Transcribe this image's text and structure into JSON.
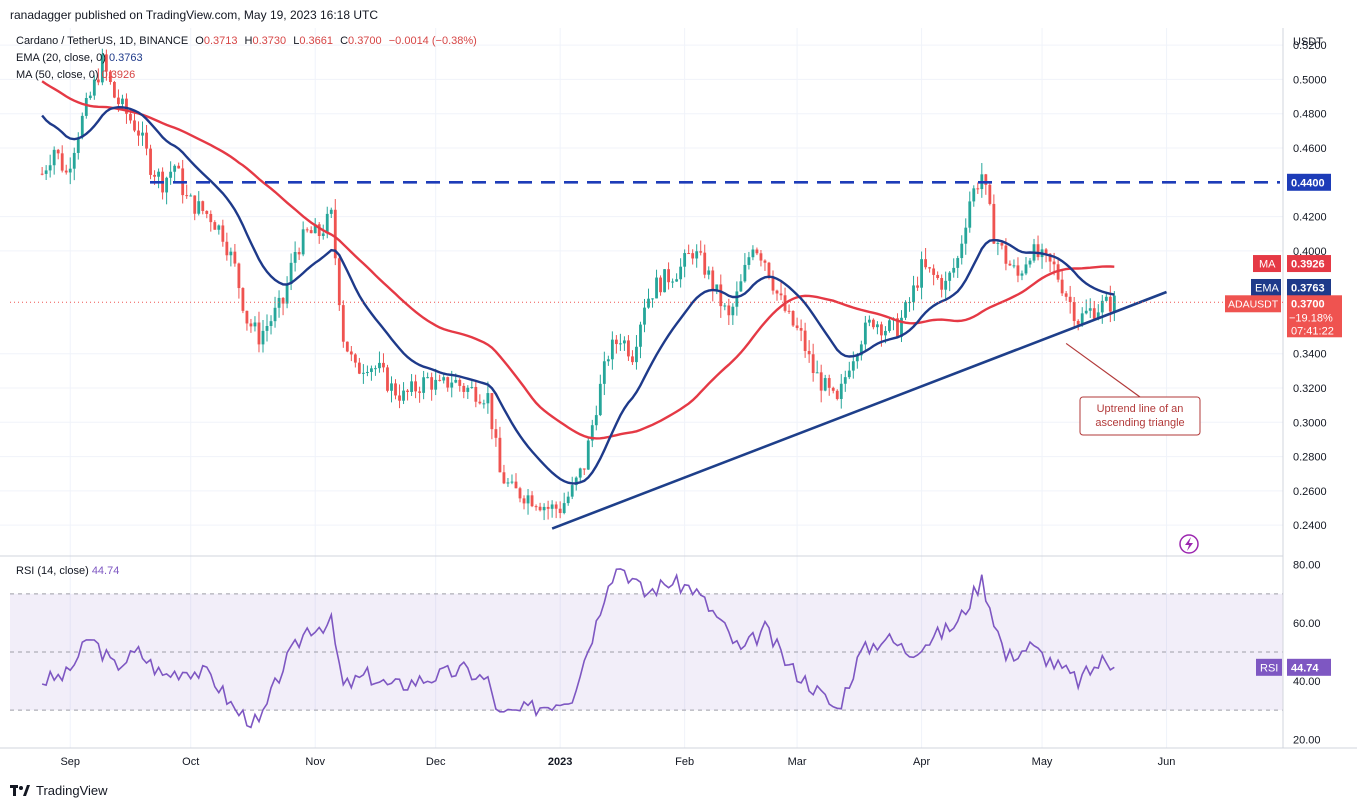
{
  "header": {
    "published": "ranadagger published on TradingView.com, May 19, 2023 16:18 UTC"
  },
  "legend": {
    "symbol": "Cardano / TetherUS, 1D, BINANCE",
    "o_label": "O",
    "o_value": "0.3713",
    "h_label": "H",
    "h_value": "0.3730",
    "l_label": "L",
    "l_value": "0.3661",
    "c_label": "C",
    "c_value": "0.3700",
    "change": "−0.0014 (−0.38%)",
    "ema_label": "EMA (20, close, 0)",
    "ema_value": "0.3763",
    "ma_label": "MA (50, close, 0)",
    "ma_value": "0.3926",
    "rsi_label": "RSI (14, close)",
    "rsi_value": "44.74"
  },
  "footer": {
    "brand": "TradingView"
  },
  "colors": {
    "up": "#26a69a",
    "down": "#ef5350",
    "ema": "#1e3a8a",
    "ma": "#e53945",
    "rsi": "#7e57c2",
    "trend": "#1e3f8a",
    "resistance": "#1d3cb8"
  },
  "chart_data": [
    {
      "type": "candlestick",
      "title": "Cardano / TetherUS, 1D, BINANCE",
      "y_axis_unit": "USDT",
      "y_ticks": [
        "0.5200",
        "0.5000",
        "0.4800",
        "0.4600",
        "0.4200",
        "0.4000",
        "0.3400",
        "0.3200",
        "0.3000",
        "0.2800",
        "0.2600",
        "0.2400"
      ],
      "x_ticks": [
        "Sep",
        "Oct",
        "Nov",
        "Dec",
        "2023",
        "Feb",
        "Mar",
        "Apr",
        "May",
        "Jun"
      ],
      "ylim": [
        0.222,
        0.53
      ],
      "grid": true,
      "price_labels": {
        "resistance": "0.4400",
        "ma_tag": "MA",
        "ma": "0.3926",
        "ema_tag": "EMA",
        "ema": "0.3763",
        "symbol_tag": "ADAUSDT",
        "last": "0.3700",
        "last_change": "−19.18%",
        "countdown": "07:41:22"
      },
      "resistance_level": 0.44,
      "trendline": {
        "from": {
          "date": "2022-12-30",
          "price": 0.238
        },
        "to": {
          "date": "2023-06-01",
          "price": 0.376
        }
      },
      "annotation": {
        "lines": [
          "Uptrend line of an",
          "ascending triangle"
        ],
        "points_to": {
          "date": "2023-05-07",
          "price": 0.346
        }
      },
      "series_close": [
        [
          "2022-08-25",
          0.445
        ],
        [
          "2022-08-28",
          0.46
        ],
        [
          "2022-08-31",
          0.445
        ],
        [
          "2022-09-03",
          0.47
        ],
        [
          "2022-09-06",
          0.49
        ],
        [
          "2022-09-09",
          0.51
        ],
        [
          "2022-09-12",
          0.49
        ],
        [
          "2022-09-15",
          0.48
        ],
        [
          "2022-09-18",
          0.47
        ],
        [
          "2022-09-21",
          0.45
        ],
        [
          "2022-09-24",
          0.44
        ],
        [
          "2022-09-27",
          0.45
        ],
        [
          "2022-09-30",
          0.43
        ],
        [
          "2022-10-03",
          0.425
        ],
        [
          "2022-10-06",
          0.42
        ],
        [
          "2022-10-09",
          0.41
        ],
        [
          "2022-10-12",
          0.39
        ],
        [
          "2022-10-15",
          0.36
        ],
        [
          "2022-10-18",
          0.35
        ],
        [
          "2022-10-21",
          0.36
        ],
        [
          "2022-10-24",
          0.37
        ],
        [
          "2022-10-27",
          0.4
        ],
        [
          "2022-10-30",
          0.41
        ],
        [
          "2022-11-02",
          0.41
        ],
        [
          "2022-11-05",
          0.42
        ],
        [
          "2022-11-08",
          0.35
        ],
        [
          "2022-11-11",
          0.33
        ],
        [
          "2022-11-14",
          0.335
        ],
        [
          "2022-11-17",
          0.33
        ],
        [
          "2022-11-20",
          0.32
        ],
        [
          "2022-11-23",
          0.315
        ],
        [
          "2022-11-26",
          0.32
        ],
        [
          "2022-11-29",
          0.325
        ],
        [
          "2022-12-02",
          0.32
        ],
        [
          "2022-12-05",
          0.325
        ],
        [
          "2022-12-08",
          0.32
        ],
        [
          "2022-12-11",
          0.318
        ],
        [
          "2022-12-14",
          0.315
        ],
        [
          "2022-12-17",
          0.27
        ],
        [
          "2022-12-20",
          0.26
        ],
        [
          "2022-12-23",
          0.258
        ],
        [
          "2022-12-26",
          0.255
        ],
        [
          "2022-12-29",
          0.25
        ],
        [
          "2023-01-01",
          0.25
        ],
        [
          "2023-01-04",
          0.26
        ],
        [
          "2023-01-07",
          0.275
        ],
        [
          "2023-01-10",
          0.31
        ],
        [
          "2023-01-13",
          0.34
        ],
        [
          "2023-01-16",
          0.35
        ],
        [
          "2023-01-19",
          0.34
        ],
        [
          "2023-01-22",
          0.37
        ],
        [
          "2023-01-25",
          0.38
        ],
        [
          "2023-01-28",
          0.385
        ],
        [
          "2023-01-31",
          0.39
        ],
        [
          "2023-02-03",
          0.4
        ],
        [
          "2023-02-06",
          0.39
        ],
        [
          "2023-02-09",
          0.375
        ],
        [
          "2023-02-12",
          0.36
        ],
        [
          "2023-02-15",
          0.38
        ],
        [
          "2023-02-18",
          0.405
        ],
        [
          "2023-02-21",
          0.395
        ],
        [
          "2023-02-24",
          0.375
        ],
        [
          "2023-02-27",
          0.36
        ],
        [
          "2023-03-02",
          0.35
        ],
        [
          "2023-03-05",
          0.33
        ],
        [
          "2023-03-08",
          0.32
        ],
        [
          "2023-03-11",
          0.31
        ],
        [
          "2023-03-14",
          0.335
        ],
        [
          "2023-03-17",
          0.35
        ],
        [
          "2023-03-20",
          0.36
        ],
        [
          "2023-03-23",
          0.355
        ],
        [
          "2023-03-26",
          0.355
        ],
        [
          "2023-03-29",
          0.37
        ],
        [
          "2023-04-01",
          0.39
        ],
        [
          "2023-04-04",
          0.385
        ],
        [
          "2023-04-07",
          0.38
        ],
        [
          "2023-04-10",
          0.395
        ],
        [
          "2023-04-13",
          0.43
        ],
        [
          "2023-04-16",
          0.445
        ],
        [
          "2023-04-19",
          0.41
        ],
        [
          "2023-04-22",
          0.395
        ],
        [
          "2023-04-25",
          0.385
        ],
        [
          "2023-04-28",
          0.4
        ],
        [
          "2023-05-01",
          0.395
        ],
        [
          "2023-05-04",
          0.39
        ],
        [
          "2023-05-07",
          0.375
        ],
        [
          "2023-05-10",
          0.36
        ],
        [
          "2023-05-13",
          0.365
        ],
        [
          "2023-05-16",
          0.368
        ],
        [
          "2023-05-19",
          0.37
        ]
      ]
    },
    {
      "type": "line",
      "title": "RSI (14, close)",
      "y_ticks": [
        "80.00",
        "60.00",
        "40.00",
        "20.00"
      ],
      "ylim": [
        17,
        83
      ],
      "bands": [
        30,
        50,
        70
      ],
      "last_tag": "RSI",
      "last_value": "44.74",
      "series": [
        {
          "name": "RSI",
          "values": [
            [
              "2022-08-25",
              40
            ],
            [
              "2022-08-31",
              42
            ],
            [
              "2022-09-06",
              55
            ],
            [
              "2022-09-12",
              45
            ],
            [
              "2022-09-18",
              50
            ],
            [
              "2022-09-24",
              42
            ],
            [
              "2022-09-30",
              44
            ],
            [
              "2022-10-06",
              42
            ],
            [
              "2022-10-12",
              30
            ],
            [
              "2022-10-18",
              25
            ],
            [
              "2022-10-24",
              45
            ],
            [
              "2022-10-30",
              58
            ],
            [
              "2022-11-05",
              60
            ],
            [
              "2022-11-08",
              38
            ],
            [
              "2022-11-14",
              42
            ],
            [
              "2022-11-20",
              38
            ],
            [
              "2022-11-26",
              40
            ],
            [
              "2022-12-02",
              42
            ],
            [
              "2022-12-08",
              44
            ],
            [
              "2022-12-14",
              40
            ],
            [
              "2022-12-17",
              28
            ],
            [
              "2022-12-23",
              30
            ],
            [
              "2022-12-29",
              32
            ],
            [
              "2023-01-04",
              35
            ],
            [
              "2023-01-10",
              60
            ],
            [
              "2023-01-13",
              75
            ],
            [
              "2023-01-16",
              80
            ],
            [
              "2023-01-22",
              70
            ],
            [
              "2023-01-28",
              74
            ],
            [
              "2023-02-03",
              72
            ],
            [
              "2023-02-09",
              62
            ],
            [
              "2023-02-15",
              50
            ],
            [
              "2023-02-21",
              58
            ],
            [
              "2023-02-27",
              45
            ],
            [
              "2023-03-05",
              38
            ],
            [
              "2023-03-11",
              30
            ],
            [
              "2023-03-17",
              50
            ],
            [
              "2023-03-23",
              55
            ],
            [
              "2023-03-29",
              50
            ],
            [
              "2023-04-04",
              55
            ],
            [
              "2023-04-10",
              60
            ],
            [
              "2023-04-16",
              75
            ],
            [
              "2023-04-22",
              48
            ],
            [
              "2023-04-28",
              52
            ],
            [
              "2023-05-04",
              46
            ],
            [
              "2023-05-10",
              40
            ],
            [
              "2023-05-16",
              47
            ],
            [
              "2023-05-19",
              44.74
            ]
          ]
        }
      ]
    }
  ]
}
